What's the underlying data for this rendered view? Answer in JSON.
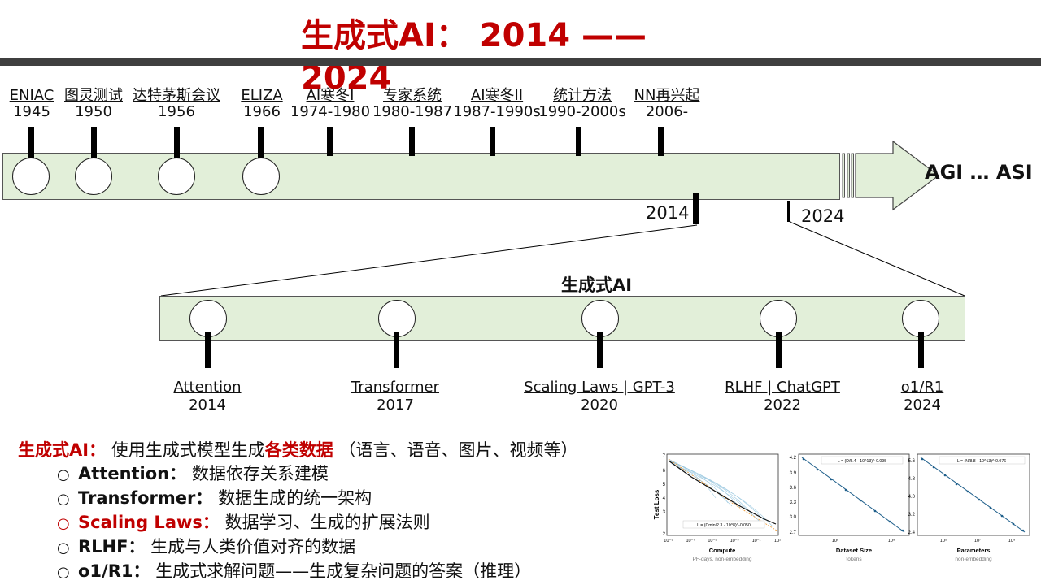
{
  "title": "生成式AI： 2014 —— 2024",
  "timeline": [
    {
      "name": "ENIAC",
      "year": "1945"
    },
    {
      "name": "图灵测试",
      "year": "1950"
    },
    {
      "name": "达特茅斯会议",
      "year": "1956"
    },
    {
      "name": "ELIZA",
      "year": "1966"
    },
    {
      "name": "AI寒冬I",
      "year": "1974-1980"
    },
    {
      "name": "专家系统",
      "year": "1980-1987"
    },
    {
      "name": "AI寒冬II",
      "year": "1987-1990s"
    },
    {
      "name": "统计方法",
      "year": "1990-2000s"
    },
    {
      "name": "NN再兴起",
      "year": "2006-"
    }
  ],
  "marker_2014": "2014",
  "marker_2024": "2024",
  "agi_label": "AGI … ASI",
  "genai": {
    "title": "生成式AI",
    "milestones": [
      {
        "name": "Attention",
        "year": "2014"
      },
      {
        "name": "Transformer",
        "year": "2017"
      },
      {
        "name": "Scaling Laws | GPT-3",
        "year": "2020"
      },
      {
        "name": "RLHF | ChatGPT",
        "year": "2022"
      },
      {
        "name": "o1/R1",
        "year": "2024"
      }
    ]
  },
  "bullets": {
    "lead_key": "生成式AI：",
    "lead_text_1": "使用生成式模型生成",
    "lead_emph": "各类数据",
    "lead_text_2": "（语言、语音、图片、视频等）",
    "items": [
      {
        "key": "Attention：",
        "text": "数据依存关系建模"
      },
      {
        "key": "Transformer：",
        "text": "数据生成的统一架构"
      },
      {
        "key": "Scaling Laws：",
        "text": "数据学习、生成的扩展法则"
      },
      {
        "key": "RLHF：",
        "text": "生成与人类价值对齐的数据"
      },
      {
        "key": "o1/R1：",
        "text": "生成式求解问题——生成复杂问题的答案（推理）"
      }
    ]
  },
  "scaling_chart": {
    "panels": [
      {
        "xlabel": "Compute",
        "sublabel": "PF-days, non-embedding",
        "legend": "L = (Cmin/2.3 · 10^8)^-0.050",
        "yticks": [
          "7",
          "6",
          "5",
          "4",
          "3",
          "2"
        ],
        "xticks": [
          "10⁻⁹",
          "10⁻⁷",
          "10⁻⁵",
          "10⁻³",
          "10⁻¹",
          "10¹"
        ]
      },
      {
        "xlabel": "Dataset Size",
        "sublabel": "tokens",
        "legend": "L = (D/5.4 · 10^13)^-0.095",
        "yticks": [
          "4.2",
          "3.9",
          "3.6",
          "3.3",
          "3.0",
          "2.7"
        ],
        "xticks": [
          "10⁸",
          "10⁹"
        ]
      },
      {
        "xlabel": "Parameters",
        "sublabel": "non-embedding",
        "legend": "L = (N/8.8 · 10^13)^-0.076",
        "yticks": [
          "5.6",
          "4.8",
          "4.0",
          "3.2",
          "2.4"
        ],
        "xticks": [
          "10⁵",
          "10⁷",
          "10⁹"
        ]
      }
    ],
    "ylabel": "Test Loss"
  }
}
